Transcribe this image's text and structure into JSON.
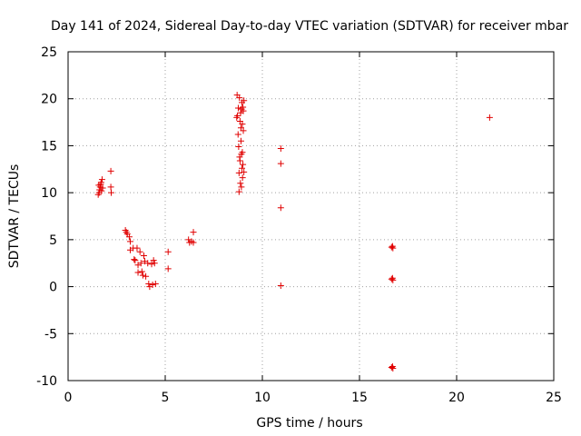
{
  "chart_data": {
    "type": "scatter",
    "title": "Day 141 of 2024, Sidereal Day-to-day VTEC variation (SDTVAR) for receiver mbar",
    "xlabel": "GPS time / hours",
    "ylabel": "SDTVAR / TECUs",
    "xlim": [
      0,
      25
    ],
    "ylim": [
      -10,
      25
    ],
    "xticks": [
      0,
      5,
      10,
      15,
      20,
      25
    ],
    "yticks": [
      -10,
      -5,
      0,
      5,
      10,
      15,
      20,
      25
    ],
    "grid": true,
    "marker": "+",
    "color": "#e00000",
    "points": [
      [
        1.55,
        9.8
      ],
      [
        1.6,
        10.0
      ],
      [
        1.62,
        10.3
      ],
      [
        1.65,
        10.6
      ],
      [
        1.68,
        10.9
      ],
      [
        1.7,
        11.1
      ],
      [
        1.72,
        10.2
      ],
      [
        1.75,
        11.4
      ],
      [
        1.78,
        10.5
      ],
      [
        1.58,
        10.8
      ],
      [
        2.2,
        12.3
      ],
      [
        2.2,
        10.6
      ],
      [
        2.22,
        10.0
      ],
      [
        2.95,
        6.0
      ],
      [
        3.0,
        5.8
      ],
      [
        3.05,
        5.6
      ],
      [
        3.15,
        5.3
      ],
      [
        3.2,
        4.8
      ],
      [
        3.2,
        3.9
      ],
      [
        3.35,
        4.1
      ],
      [
        3.4,
        2.9
      ],
      [
        3.45,
        2.8
      ],
      [
        3.55,
        4.1
      ],
      [
        3.6,
        2.3
      ],
      [
        3.6,
        1.5
      ],
      [
        3.7,
        3.7
      ],
      [
        3.75,
        2.5
      ],
      [
        3.8,
        1.6
      ],
      [
        3.85,
        1.2
      ],
      [
        3.9,
        3.3
      ],
      [
        3.95,
        2.7
      ],
      [
        4.0,
        1.1
      ],
      [
        4.1,
        2.5
      ],
      [
        4.15,
        0.3
      ],
      [
        4.2,
        0.0
      ],
      [
        4.3,
        2.4
      ],
      [
        4.35,
        0.2
      ],
      [
        4.4,
        2.8
      ],
      [
        4.45,
        2.5
      ],
      [
        4.5,
        0.3
      ],
      [
        5.15,
        3.7
      ],
      [
        5.15,
        1.9
      ],
      [
        6.2,
        5.0
      ],
      [
        6.25,
        4.7
      ],
      [
        6.35,
        4.8
      ],
      [
        6.45,
        4.7
      ],
      [
        6.45,
        5.8
      ],
      [
        8.7,
        20.4
      ],
      [
        8.72,
        18.2
      ],
      [
        8.75,
        16.2
      ],
      [
        8.78,
        14.9
      ],
      [
        8.8,
        10.1
      ],
      [
        8.8,
        12.1
      ],
      [
        8.82,
        20.1
      ],
      [
        8.85,
        17.6
      ],
      [
        8.85,
        13.4
      ],
      [
        8.87,
        11.0
      ],
      [
        8.88,
        18.5
      ],
      [
        8.9,
        16.9
      ],
      [
        8.9,
        15.5
      ],
      [
        8.92,
        14.1
      ],
      [
        8.92,
        10.6
      ],
      [
        8.95,
        19.6
      ],
      [
        8.95,
        12.6
      ],
      [
        8.97,
        17.3
      ],
      [
        8.98,
        11.6
      ],
      [
        9.0,
        19.1
      ],
      [
        9.0,
        13.0
      ],
      [
        9.02,
        18.7
      ],
      [
        9.02,
        16.6
      ],
      [
        9.05,
        12.2
      ],
      [
        9.05,
        19.8
      ],
      [
        8.68,
        18.0
      ],
      [
        8.76,
        19.0
      ],
      [
        8.83,
        13.8
      ],
      [
        8.93,
        18.9
      ],
      [
        8.97,
        14.3
      ],
      [
        10.95,
        14.7
      ],
      [
        10.95,
        13.1
      ],
      [
        10.95,
        8.4
      ],
      [
        10.95,
        0.1
      ],
      [
        16.65,
        4.2
      ],
      [
        16.7,
        4.3
      ],
      [
        16.72,
        4.1
      ],
      [
        16.65,
        0.8
      ],
      [
        16.7,
        0.9
      ],
      [
        16.72,
        0.7
      ],
      [
        16.65,
        -8.6
      ],
      [
        16.7,
        -8.5
      ],
      [
        16.72,
        -8.7
      ],
      [
        21.7,
        18.0
      ]
    ]
  }
}
